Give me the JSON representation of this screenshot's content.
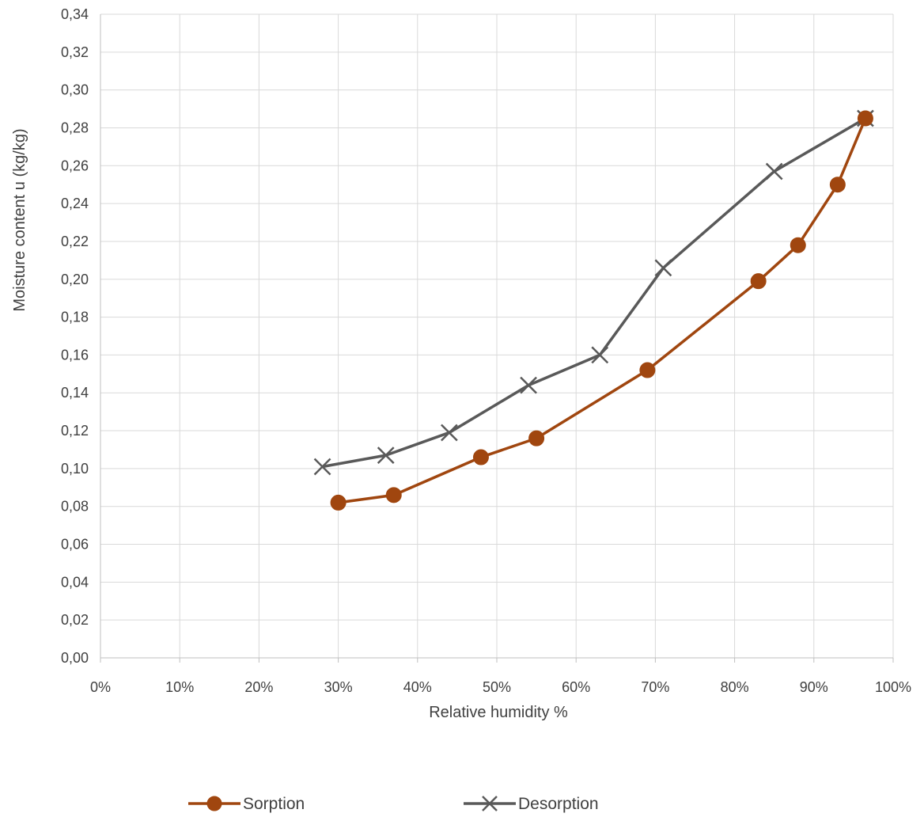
{
  "chart_data": {
    "type": "line",
    "title": "",
    "xlabel": "Relative humidity %",
    "ylabel": "Moisture content u (kg/kg)",
    "xlim": [
      0,
      100
    ],
    "ylim": [
      0,
      0.34
    ],
    "x_ticks": [
      "0%",
      "10%",
      "20%",
      "30%",
      "40%",
      "50%",
      "60%",
      "70%",
      "80%",
      "90%",
      "100%"
    ],
    "y_ticks": [
      "0,00",
      "0,02",
      "0,04",
      "0,06",
      "0,08",
      "0,10",
      "0,12",
      "0,14",
      "0,16",
      "0,18",
      "0,20",
      "0,22",
      "0,24",
      "0,26",
      "0,28",
      "0,30",
      "0,32",
      "0,34"
    ],
    "grid": true,
    "legend_position": "bottom",
    "series": [
      {
        "name": "Sorption",
        "color": "#A0460F",
        "marker": "circle",
        "points": [
          {
            "x": 30,
            "y": 0.082
          },
          {
            "x": 37,
            "y": 0.086
          },
          {
            "x": 48,
            "y": 0.106
          },
          {
            "x": 55,
            "y": 0.116
          },
          {
            "x": 69,
            "y": 0.152
          },
          {
            "x": 83,
            "y": 0.199
          },
          {
            "x": 88,
            "y": 0.218
          },
          {
            "x": 93,
            "y": 0.25
          },
          {
            "x": 96.5,
            "y": 0.285
          }
        ]
      },
      {
        "name": "Desorption",
        "color": "#595959",
        "marker": "x",
        "points": [
          {
            "x": 28,
            "y": 0.101
          },
          {
            "x": 36,
            "y": 0.107
          },
          {
            "x": 44,
            "y": 0.119
          },
          {
            "x": 54,
            "y": 0.144
          },
          {
            "x": 63,
            "y": 0.16
          },
          {
            "x": 71,
            "y": 0.206
          },
          {
            "x": 85,
            "y": 0.257
          },
          {
            "x": 96.5,
            "y": 0.285
          }
        ]
      }
    ]
  }
}
